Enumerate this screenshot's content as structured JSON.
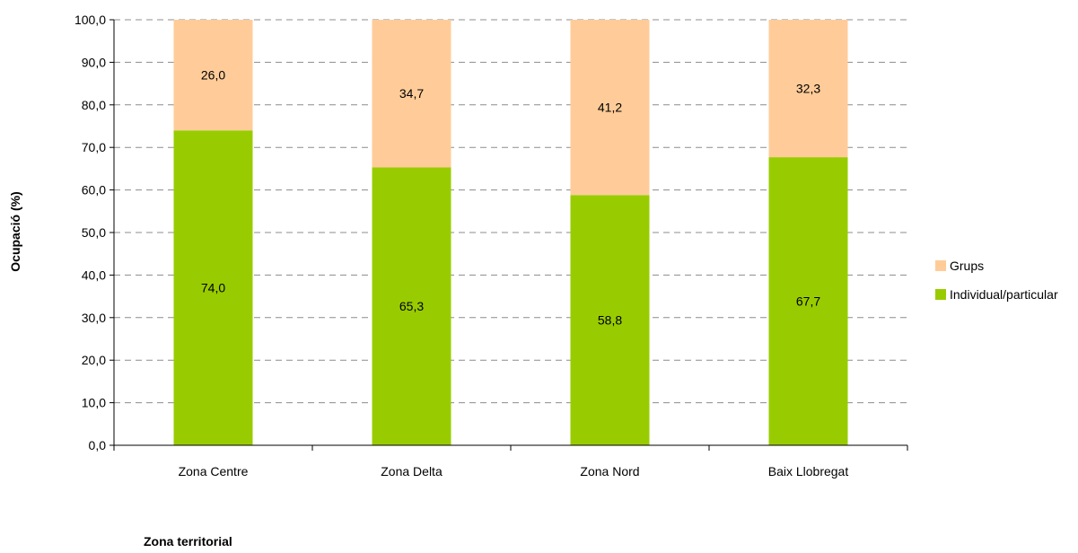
{
  "chart_data": {
    "type": "bar",
    "stacked": true,
    "categories": [
      "Zona Centre",
      "Zona Delta",
      "Zona Nord",
      "Baix Llobregat"
    ],
    "series": [
      {
        "name": "Individual/particular",
        "values": [
          74.0,
          65.3,
          58.8,
          67.7
        ],
        "labels": [
          "74,0",
          "65,3",
          "58,8",
          "67,7"
        ],
        "color": "#99CC00"
      },
      {
        "name": "Grups",
        "values": [
          26.0,
          34.7,
          41.2,
          32.3
        ],
        "labels": [
          "26,0",
          "34,7",
          "41,2",
          "32,3"
        ],
        "color": "#FFCC99"
      }
    ],
    "ylim": [
      0,
      100
    ],
    "y_ticks": [
      "0,0",
      "10,0",
      "20,0",
      "30,0",
      "40,0",
      "50,0",
      "60,0",
      "70,0",
      "80,0",
      "90,0",
      "100,0"
    ],
    "ylabel": "Ocupació (%)",
    "xlabel": "Zona territorial",
    "grid": true,
    "legend": {
      "position": "right",
      "entries": [
        {
          "label": "Grups",
          "color": "#FFCC99"
        },
        {
          "label": "Individual/particular",
          "color": "#99CC00"
        }
      ]
    }
  }
}
